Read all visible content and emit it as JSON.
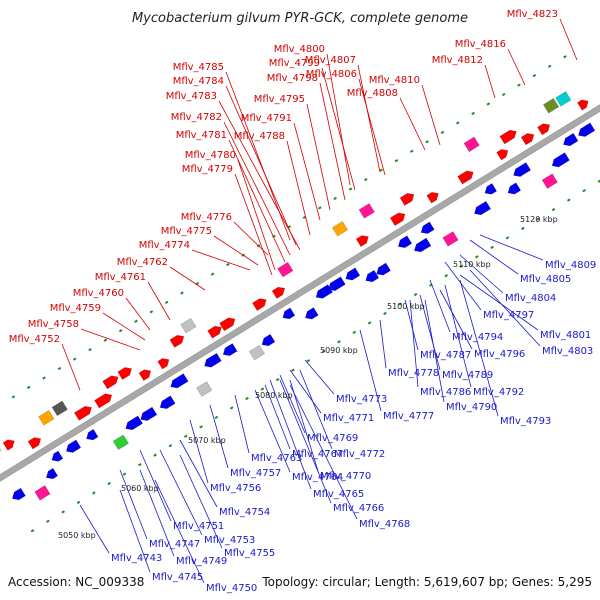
{
  "title": "Mycobacterium gilvum PYR-GCK, complete genome",
  "footer": {
    "accession": "Accession: NC_009338",
    "topology": "Topology: circular; Length: 5,619,607 bp; Genes: 5,295"
  },
  "colors": {
    "forward_label": "#d40000",
    "reverse_label": "#1a1acc",
    "forward_gene": "#ff0000",
    "reverse_gene": "#0000ee",
    "backbone": "#a8a8a8"
  },
  "kbp_ticks": [
    "5050 kbp",
    "5060 kbp",
    "5070 kbp",
    "5080 kbp",
    "5090 kbp",
    "5100 kbp",
    "5110 kbp",
    "5120 kbp"
  ],
  "top_labels": [
    "Mflv_4823",
    "Mflv_4816",
    "Mflv_4812",
    "Mflv_4800",
    "Mflv_4807",
    "Mflv_4799",
    "Mflv_4806",
    "Mflv_4810",
    "Mflv_4798",
    "Mflv_4808",
    "Mflv_4785",
    "Mflv_4784",
    "Mflv_4783",
    "Mflv_4795",
    "Mflv_4782",
    "Mflv_4791",
    "Mflv_4781",
    "Mflv_4788",
    "Mflv_4780",
    "Mflv_4779",
    "Mflv_4776",
    "Mflv_4775",
    "Mflv_4774",
    "Mflv_4762",
    "Mflv_4761",
    "Mflv_4760",
    "Mflv_4759",
    "Mflv_4758",
    "Mflv_4752"
  ],
  "bottom_labels": [
    "Mflv_4809",
    "Mflv_4805",
    "Mflv_4804",
    "Mflv_4797",
    "Mflv_4801",
    "Mflv_4794",
    "Mflv_4803",
    "Mflv_4796",
    "Mflv_4787",
    "Mflv_4778",
    "Mflv_4789",
    "Mflv_4792",
    "Mflv_4786",
    "Mflv_4790",
    "Mflv_4773",
    "Mflv_4793",
    "Mflv_4771",
    "Mflv_4777",
    "Mflv_4769",
    "Mflv_4767",
    "Mflv_4772",
    "Mflv_4763",
    "Mflv_4770",
    "Mflv_4757",
    "Mflv_4764",
    "Mflv_4765",
    "Mflv_4756",
    "Mflv_4766",
    "Mflv_4754",
    "Mflv_4768",
    "Mflv_4751",
    "Mflv_4753",
    "Mflv_4747",
    "Mflv_4755",
    "Mflv_4743",
    "Mflv_4749",
    "Mflv_4745",
    "Mflv_4750"
  ]
}
